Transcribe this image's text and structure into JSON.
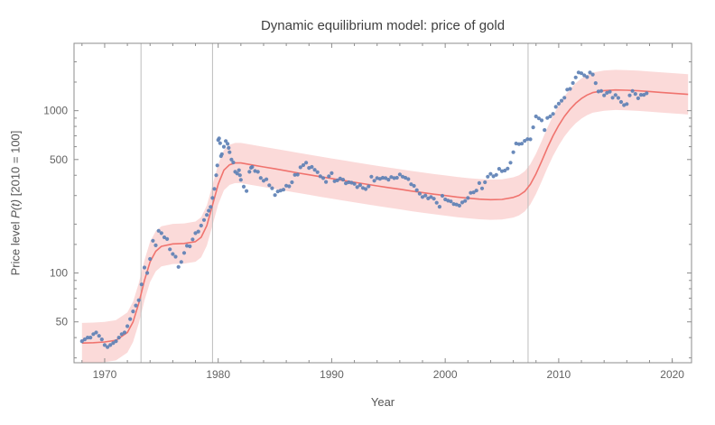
{
  "chart_data": {
    "type": "scatter",
    "title": "Dynamic equilibrium model: price of gold",
    "xlabel": "Year",
    "ylabel_prefix": "Price level ",
    "ylabel_var": "P(t)",
    "ylabel_suffix": " [2010 = 100]",
    "x_range": [
      1967.3,
      2021.7
    ],
    "y_range": [
      28,
      2600
    ],
    "y_scale": "log",
    "grid": "vertical-event-lines-only",
    "legend": "none",
    "x_ticks": [
      1970,
      1980,
      1990,
      2000,
      2010,
      2020
    ],
    "x_minor_ticks": [
      1968,
      1972,
      1974,
      1976,
      1978,
      1982,
      1984,
      1986,
      1988,
      1992,
      1994,
      1996,
      1998,
      2002,
      2004,
      2006,
      2008,
      2012,
      2014,
      2016,
      2018,
      2020
    ],
    "y_ticks": [
      {
        "value": 50,
        "label": "50"
      },
      {
        "value": 100,
        "label": "100"
      },
      {
        "value": 500,
        "label": "500"
      },
      {
        "value": 1000,
        "label": "1000"
      }
    ],
    "y_minor_ticks": [
      30,
      40,
      60,
      70,
      80,
      90,
      150,
      200,
      300,
      400,
      600,
      700,
      800,
      900,
      1500,
      2000
    ],
    "gridlines_x": [
      1973.2,
      1979.5,
      2007.3
    ],
    "band_factor": 1.33,
    "colors": {
      "points": "#5e81b5",
      "model_line": "#f0736e",
      "band_fill": "#fbd8d7",
      "gridline": "#bcbcbc",
      "frame": "#8c8c8c",
      "tick_text": "#636363"
    },
    "series": [
      {
        "name": "observed-price",
        "type": "scatter",
        "points": [
          [
            1968.0,
            38
          ],
          [
            1968.25,
            39
          ],
          [
            1968.5,
            40
          ],
          [
            1968.75,
            40
          ],
          [
            1969.0,
            42
          ],
          [
            1969.25,
            43
          ],
          [
            1969.5,
            41
          ],
          [
            1969.75,
            39
          ],
          [
            1970.0,
            36
          ],
          [
            1970.25,
            35
          ],
          [
            1970.5,
            36
          ],
          [
            1970.75,
            37
          ],
          [
            1971.0,
            38
          ],
          [
            1971.25,
            40
          ],
          [
            1971.5,
            42
          ],
          [
            1971.75,
            43
          ],
          [
            1972.0,
            47
          ],
          [
            1972.25,
            52
          ],
          [
            1972.5,
            58
          ],
          [
            1972.75,
            63
          ],
          [
            1973.0,
            68
          ],
          [
            1973.25,
            85
          ],
          [
            1973.5,
            108
          ],
          [
            1973.75,
            100
          ],
          [
            1974.0,
            122
          ],
          [
            1974.25,
            158
          ],
          [
            1974.5,
            148
          ],
          [
            1974.75,
            182
          ],
          [
            1975.0,
            176
          ],
          [
            1975.25,
            166
          ],
          [
            1975.5,
            162
          ],
          [
            1975.75,
            140
          ],
          [
            1976.0,
            131
          ],
          [
            1976.25,
            126
          ],
          [
            1976.5,
            109
          ],
          [
            1976.75,
            117
          ],
          [
            1977.0,
            133
          ],
          [
            1977.25,
            147
          ],
          [
            1977.5,
            146
          ],
          [
            1977.75,
            161
          ],
          [
            1978.0,
            176
          ],
          [
            1978.25,
            180
          ],
          [
            1978.5,
            196
          ],
          [
            1978.75,
            212
          ],
          [
            1979.0,
            228
          ],
          [
            1979.17,
            242
          ],
          [
            1979.33,
            255
          ],
          [
            1979.5,
            290
          ],
          [
            1979.67,
            330
          ],
          [
            1979.83,
            400
          ],
          [
            1979.92,
            460
          ],
          [
            1980.0,
            660
          ],
          [
            1980.08,
            675
          ],
          [
            1980.17,
            630
          ],
          [
            1980.25,
            525
          ],
          [
            1980.33,
            540
          ],
          [
            1980.5,
            600
          ],
          [
            1980.67,
            650
          ],
          [
            1980.83,
            625
          ],
          [
            1980.92,
            590
          ],
          [
            1981.0,
            555
          ],
          [
            1981.17,
            500
          ],
          [
            1981.33,
            480
          ],
          [
            1981.5,
            420
          ],
          [
            1981.67,
            410
          ],
          [
            1981.83,
            430
          ],
          [
            1981.92,
            400
          ],
          [
            1982.0,
            375
          ],
          [
            1982.25,
            340
          ],
          [
            1982.5,
            320
          ],
          [
            1982.75,
            420
          ],
          [
            1982.9,
            445
          ],
          [
            1983.0,
            450
          ],
          [
            1983.25,
            425
          ],
          [
            1983.5,
            420
          ],
          [
            1983.75,
            385
          ],
          [
            1984.0,
            370
          ],
          [
            1984.25,
            378
          ],
          [
            1984.5,
            347
          ],
          [
            1984.75,
            333
          ],
          [
            1985.0,
            302
          ],
          [
            1985.25,
            318
          ],
          [
            1985.5,
            322
          ],
          [
            1985.75,
            326
          ],
          [
            1986.0,
            345
          ],
          [
            1986.25,
            342
          ],
          [
            1986.5,
            362
          ],
          [
            1986.75,
            402
          ],
          [
            1987.0,
            404
          ],
          [
            1987.25,
            448
          ],
          [
            1987.5,
            462
          ],
          [
            1987.75,
            478
          ],
          [
            1988.0,
            444
          ],
          [
            1988.25,
            450
          ],
          [
            1988.5,
            432
          ],
          [
            1988.75,
            418
          ],
          [
            1989.0,
            394
          ],
          [
            1989.25,
            384
          ],
          [
            1989.5,
            364
          ],
          [
            1989.75,
            394
          ],
          [
            1990.0,
            412
          ],
          [
            1990.25,
            368
          ],
          [
            1990.5,
            372
          ],
          [
            1990.75,
            382
          ],
          [
            1991.0,
            376
          ],
          [
            1991.25,
            357
          ],
          [
            1991.5,
            362
          ],
          [
            1991.75,
            360
          ],
          [
            1992.0,
            354
          ],
          [
            1992.25,
            338
          ],
          [
            1992.5,
            348
          ],
          [
            1992.75,
            334
          ],
          [
            1993.0,
            329
          ],
          [
            1993.25,
            342
          ],
          [
            1993.5,
            392
          ],
          [
            1993.75,
            370
          ],
          [
            1994.0,
            384
          ],
          [
            1994.25,
            380
          ],
          [
            1994.5,
            386
          ],
          [
            1994.75,
            384
          ],
          [
            1995.0,
            376
          ],
          [
            1995.25,
            390
          ],
          [
            1995.5,
            384
          ],
          [
            1995.75,
            386
          ],
          [
            1996.0,
            405
          ],
          [
            1996.25,
            392
          ],
          [
            1996.5,
            386
          ],
          [
            1996.75,
            379
          ],
          [
            1997.0,
            352
          ],
          [
            1997.25,
            344
          ],
          [
            1997.5,
            324
          ],
          [
            1997.75,
            308
          ],
          [
            1998.0,
            294
          ],
          [
            1998.25,
            300
          ],
          [
            1998.5,
            288
          ],
          [
            1998.75,
            294
          ],
          [
            1999.0,
            287
          ],
          [
            1999.25,
            271
          ],
          [
            1999.5,
            256
          ],
          [
            1999.75,
            299
          ],
          [
            2000.0,
            284
          ],
          [
            2000.25,
            279
          ],
          [
            2000.5,
            276
          ],
          [
            2000.75,
            266
          ],
          [
            2001.0,
            264
          ],
          [
            2001.25,
            260
          ],
          [
            2001.5,
            272
          ],
          [
            2001.75,
            278
          ],
          [
            2002.0,
            290
          ],
          [
            2002.25,
            312
          ],
          [
            2002.5,
            314
          ],
          [
            2002.75,
            322
          ],
          [
            2003.0,
            358
          ],
          [
            2003.25,
            332
          ],
          [
            2003.5,
            362
          ],
          [
            2003.75,
            392
          ],
          [
            2004.0,
            408
          ],
          [
            2004.25,
            394
          ],
          [
            2004.5,
            402
          ],
          [
            2004.75,
            438
          ],
          [
            2005.0,
            424
          ],
          [
            2005.25,
            428
          ],
          [
            2005.5,
            440
          ],
          [
            2005.75,
            478
          ],
          [
            2006.0,
            555
          ],
          [
            2006.25,
            628
          ],
          [
            2006.5,
            622
          ],
          [
            2006.75,
            626
          ],
          [
            2007.0,
            652
          ],
          [
            2007.25,
            668
          ],
          [
            2007.5,
            666
          ],
          [
            2007.75,
            790
          ],
          [
            2008.0,
            922
          ],
          [
            2008.25,
            896
          ],
          [
            2008.5,
            872
          ],
          [
            2008.75,
            760
          ],
          [
            2009.0,
            902
          ],
          [
            2009.25,
            922
          ],
          [
            2009.5,
            956
          ],
          [
            2009.75,
            1056
          ],
          [
            2010.0,
            1104
          ],
          [
            2010.25,
            1152
          ],
          [
            2010.5,
            1202
          ],
          [
            2010.75,
            1348
          ],
          [
            2011.0,
            1362
          ],
          [
            2011.25,
            1480
          ],
          [
            2011.5,
            1602
          ],
          [
            2011.75,
            1720
          ],
          [
            2012.0,
            1700
          ],
          [
            2012.25,
            1650
          ],
          [
            2012.5,
            1610
          ],
          [
            2012.75,
            1718
          ],
          [
            2013.0,
            1670
          ],
          [
            2013.25,
            1478
          ],
          [
            2013.5,
            1312
          ],
          [
            2013.75,
            1322
          ],
          [
            2014.0,
            1242
          ],
          [
            2014.25,
            1288
          ],
          [
            2014.5,
            1308
          ],
          [
            2014.75,
            1202
          ],
          [
            2015.0,
            1248
          ],
          [
            2015.25,
            1198
          ],
          [
            2015.5,
            1132
          ],
          [
            2015.75,
            1082
          ],
          [
            2016.0,
            1098
          ],
          [
            2016.25,
            1242
          ],
          [
            2016.5,
            1322
          ],
          [
            2016.75,
            1268
          ],
          [
            2017.0,
            1192
          ],
          [
            2017.25,
            1252
          ],
          [
            2017.5,
            1252
          ],
          [
            2017.75,
            1280
          ]
        ]
      },
      {
        "name": "dynamic-equilibrium-model",
        "type": "line",
        "points": [
          [
            1968,
            37
          ],
          [
            1969,
            37.2
          ],
          [
            1970,
            37.6
          ],
          [
            1971,
            38.5
          ],
          [
            1972,
            43
          ],
          [
            1972.5,
            50
          ],
          [
            1973,
            65
          ],
          [
            1973.5,
            90
          ],
          [
            1974,
            117
          ],
          [
            1974.5,
            136
          ],
          [
            1975,
            146
          ],
          [
            1976,
            151
          ],
          [
            1977,
            152
          ],
          [
            1978,
            156
          ],
          [
            1978.5,
            166
          ],
          [
            1979,
            196
          ],
          [
            1979.5,
            262
          ],
          [
            1980,
            352
          ],
          [
            1980.5,
            430
          ],
          [
            1981,
            464
          ],
          [
            1981.5,
            476
          ],
          [
            1982,
            476
          ],
          [
            1983,
            463
          ],
          [
            1984,
            450
          ],
          [
            1985,
            438
          ],
          [
            1986,
            426
          ],
          [
            1987,
            414
          ],
          [
            1988,
            403
          ],
          [
            1989,
            392
          ],
          [
            1990,
            382
          ],
          [
            1991,
            372
          ],
          [
            1992,
            362
          ],
          [
            1993,
            353
          ],
          [
            1994,
            344
          ],
          [
            1995,
            336
          ],
          [
            1996,
            328
          ],
          [
            1997,
            320
          ],
          [
            1998,
            313
          ],
          [
            1999,
            306
          ],
          [
            2000,
            300
          ],
          [
            2001,
            294
          ],
          [
            2002,
            289
          ],
          [
            2003,
            285
          ],
          [
            2004,
            283
          ],
          [
            2005,
            284
          ],
          [
            2006,
            292
          ],
          [
            2006.5,
            301
          ],
          [
            2007,
            318
          ],
          [
            2007.5,
            352
          ],
          [
            2008,
            408
          ],
          [
            2008.5,
            488
          ],
          [
            2009,
            590
          ],
          [
            2009.5,
            700
          ],
          [
            2010,
            812
          ],
          [
            2010.5,
            922
          ],
          [
            2011,
            1022
          ],
          [
            2011.5,
            1112
          ],
          [
            2012,
            1188
          ],
          [
            2012.5,
            1248
          ],
          [
            2013,
            1292
          ],
          [
            2014,
            1330
          ],
          [
            2015,
            1342
          ],
          [
            2016,
            1336
          ],
          [
            2017,
            1326
          ],
          [
            2018,
            1312
          ],
          [
            2019,
            1296
          ],
          [
            2020,
            1281
          ],
          [
            2021,
            1266
          ],
          [
            2021.4,
            1260
          ]
        ]
      }
    ]
  }
}
